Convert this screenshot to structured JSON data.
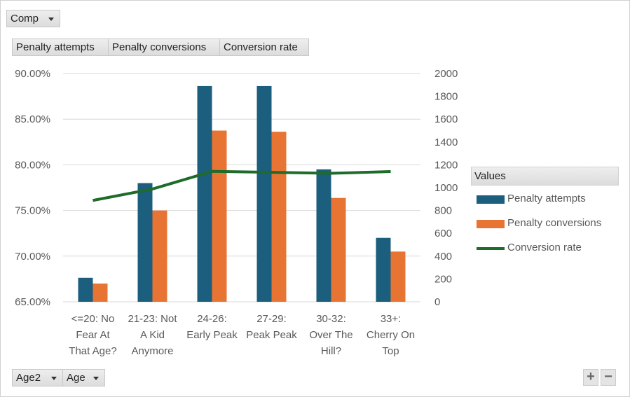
{
  "pivot": {
    "filter_label": "Comp",
    "value_buttons": [
      "Penalty attempts",
      "Penalty conversions",
      "Conversion rate"
    ],
    "axis_fields": [
      "Age2",
      "Age"
    ],
    "legend_title": "Values",
    "zoom_in": "+",
    "zoom_out": "−"
  },
  "chart_data": {
    "type": "bar",
    "categories": [
      [
        "<=20: No",
        "Fear At",
        "That Age?"
      ],
      [
        "21-23: Not",
        "A Kid",
        "Anymore"
      ],
      [
        "24-26:",
        "Early Peak"
      ],
      [
        "27-29:",
        "Peak Peak"
      ],
      [
        "30-32:",
        "Over The",
        "Hill?"
      ],
      [
        "33+:",
        "Cherry On",
        "Top"
      ]
    ],
    "series": [
      {
        "name": "Penalty attempts",
        "type": "bar",
        "axis": "right",
        "color": "#1b5e7e",
        "values": [
          210,
          1040,
          1890,
          1890,
          1160,
          560
        ]
      },
      {
        "name": "Penalty conversions",
        "type": "bar",
        "axis": "right",
        "color": "#e87434",
        "values": [
          160,
          800,
          1500,
          1490,
          910,
          440
        ]
      },
      {
        "name": "Conversion rate",
        "type": "line",
        "axis": "left",
        "color": "#1e6b2a",
        "values": [
          0.761,
          0.7735,
          0.7928,
          0.7918,
          0.7907,
          0.7926
        ]
      }
    ],
    "y_left": {
      "min": 0.65,
      "max": 0.9,
      "ticks": [
        "65.00%",
        "70.00%",
        "75.00%",
        "80.00%",
        "85.00%",
        "90.00%"
      ]
    },
    "y_right": {
      "min": 0,
      "max": 2000,
      "ticks": [
        "0",
        "200",
        "400",
        "600",
        "800",
        "1000",
        "1200",
        "1400",
        "1600",
        "1800",
        "2000"
      ]
    },
    "grid": true,
    "legend_position": "right"
  }
}
